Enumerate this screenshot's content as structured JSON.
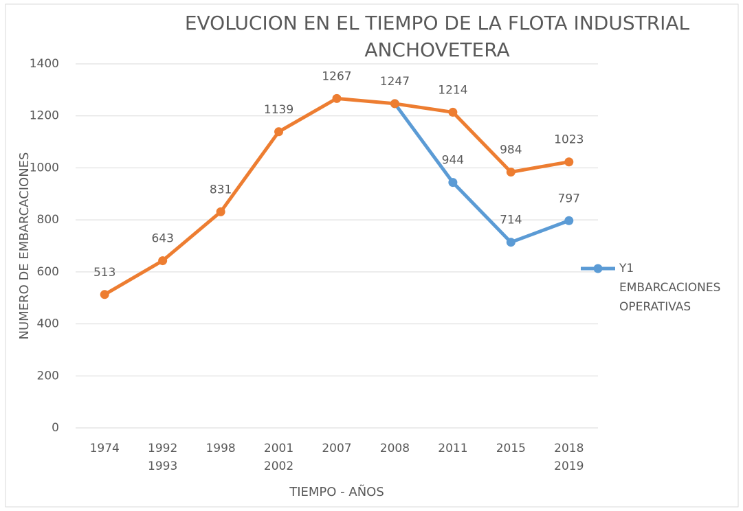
{
  "chart_data": {
    "type": "line",
    "title": [
      "EVOLUCION EN EL TIEMPO DE LA FLOTA INDUSTRIAL",
      "ANCHOVETERA"
    ],
    "x_label": "TIEMPO - AÑOS",
    "y_label": "NUMERO DE EMBARCACIONES",
    "categories": [
      "1974",
      "1992\n1993",
      "1998",
      "2001\n2002",
      "2007",
      "2008",
      "2011",
      "2015",
      "2018\n2019"
    ],
    "series": [
      {
        "color": "#5b9bd5",
        "name": "Y1 EMBARCACIONES OPERATIVAS",
        "values": [
          null,
          null,
          null,
          null,
          null,
          1247,
          944,
          714,
          797
        ]
      },
      {
        "color": "#ed7d31",
        "values": [
          513,
          643,
          831,
          1139,
          1267,
          1247,
          1214,
          984,
          1023
        ]
      }
    ],
    "ylim": [
      0,
      1400
    ],
    "yticks": [
      0,
      200,
      400,
      600,
      800,
      1000,
      1200,
      1400
    ],
    "grid": true,
    "legend": "right"
  }
}
